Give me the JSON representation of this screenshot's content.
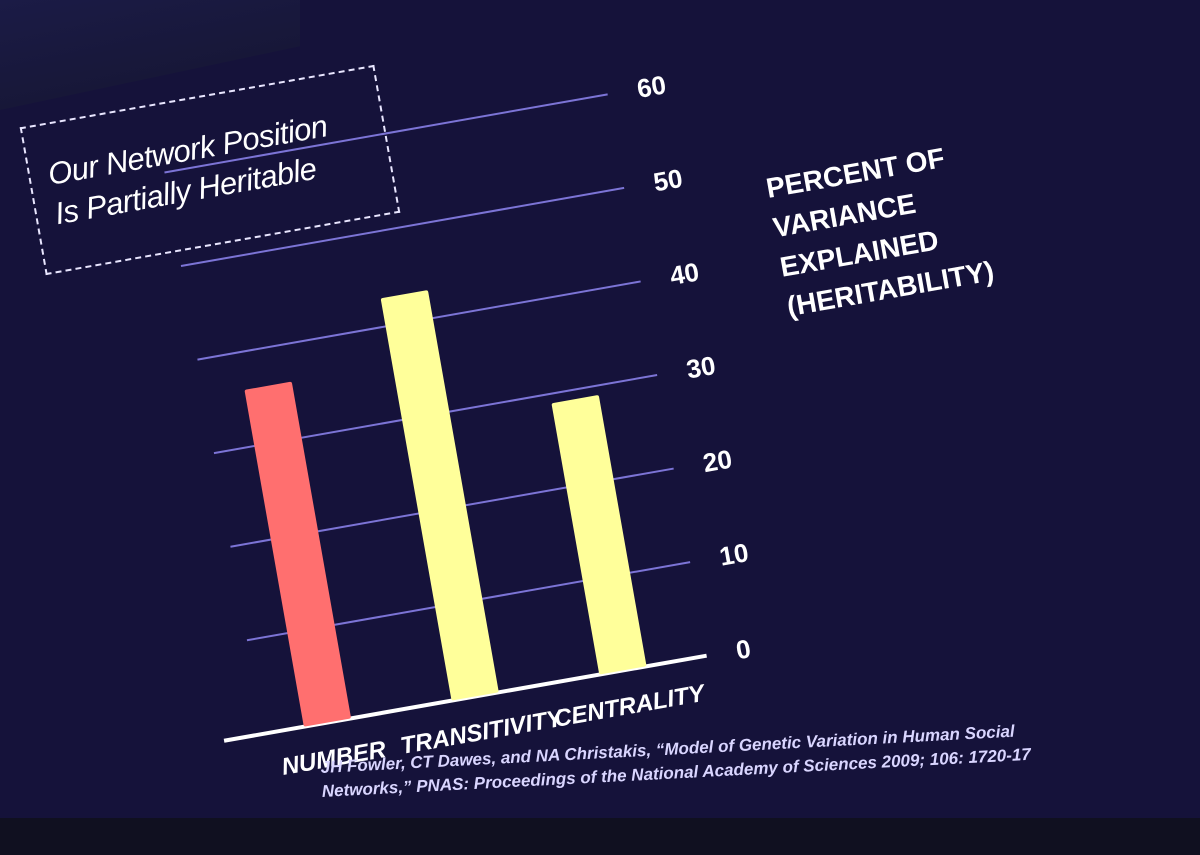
{
  "slide": {
    "title_lines": [
      "Our Network Position",
      "Is Partially Heritable"
    ],
    "citation_lines": [
      "JH Fowler, CT Dawes, and NA Christakis, “Model of Genetic Variation in Human Social",
      "Networks,” PNAS: Proceedings of the National Academy of Sciences 2009; 106: 1720-17"
    ]
  },
  "colors": {
    "background": "#2b1fa6",
    "bar_number": "#ff6f6f",
    "bar_other": "#ffff9a",
    "text": "#ffffff"
  },
  "chart_data": {
    "type": "bar",
    "categories": [
      "NUMBER",
      "TRANSITIVITY",
      "CENTRALITY"
    ],
    "values": [
      36,
      43,
      29
    ],
    "bar_colors": [
      "#ff6f6f",
      "#ffff9a",
      "#ffff9a"
    ],
    "y_ticks": [
      "0",
      "10",
      "20",
      "30",
      "40",
      "50",
      "60"
    ],
    "ylim": [
      0,
      60
    ],
    "ylabel_lines": [
      "PERCENT OF",
      "VARIANCE",
      "EXPLAINED",
      "(HERITABILITY)"
    ],
    "grid": true,
    "y_axis_side": "right"
  }
}
